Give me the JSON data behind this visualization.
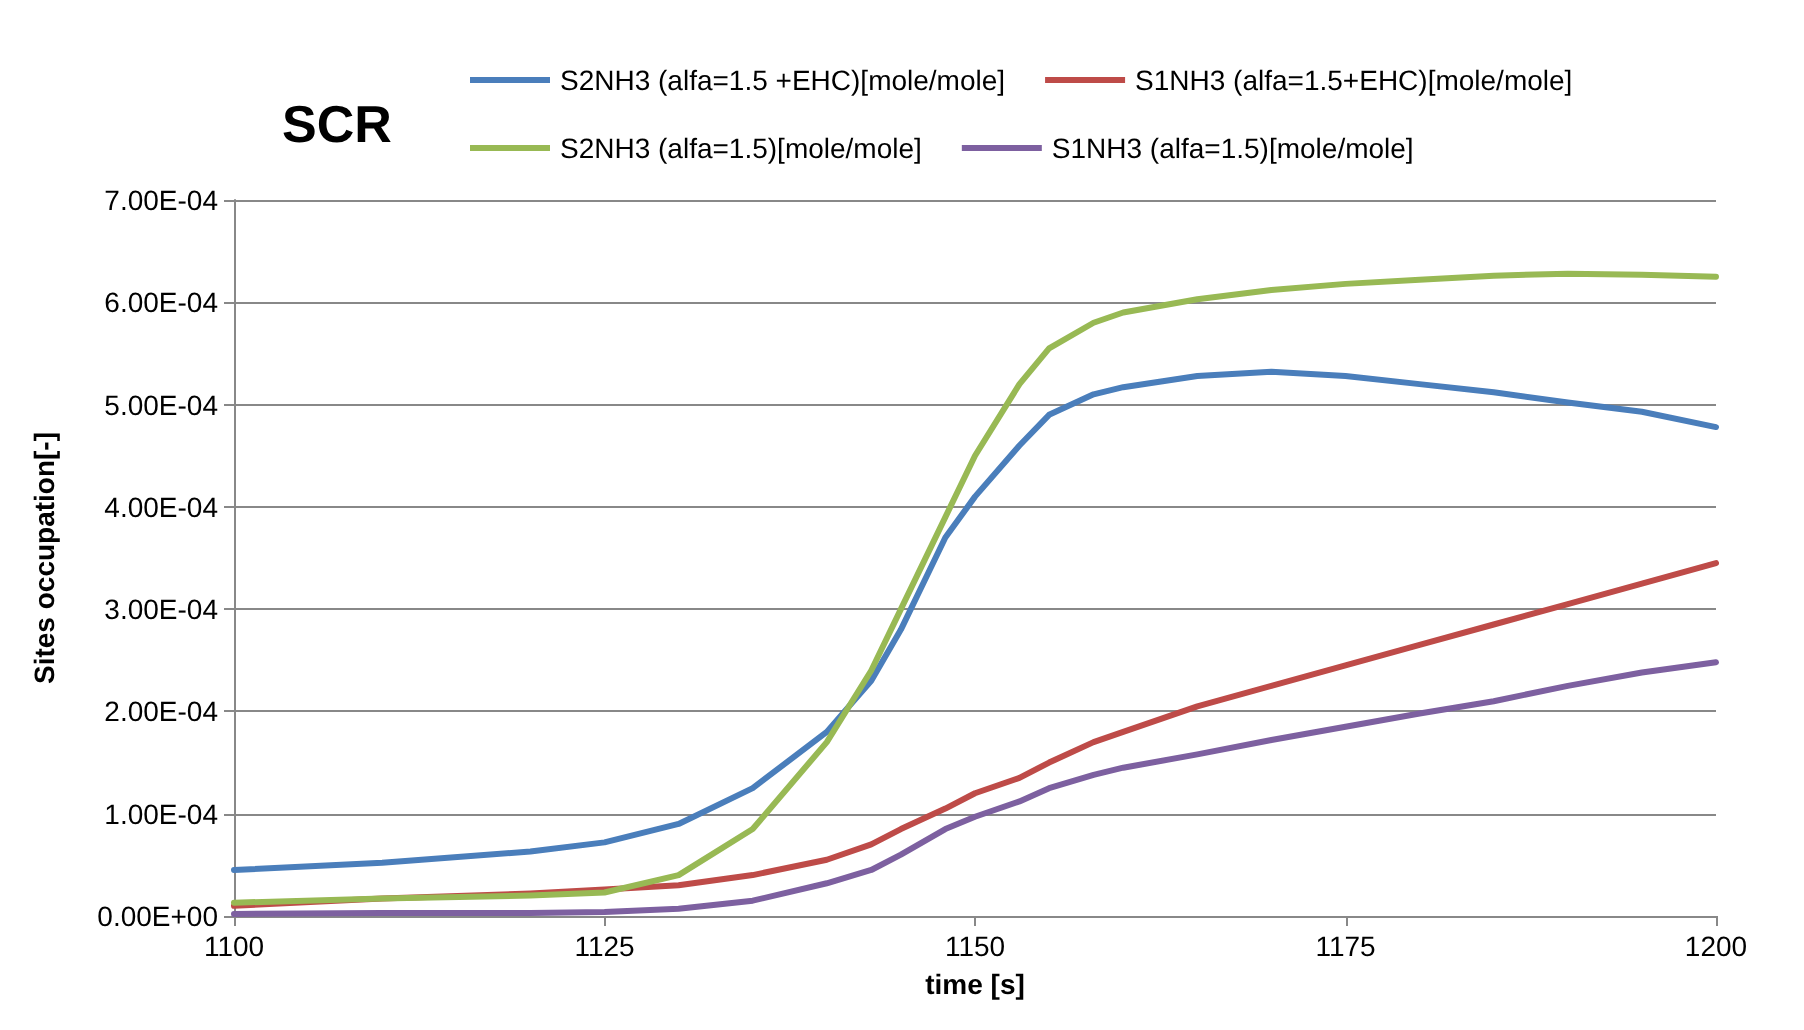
{
  "chart_data": {
    "type": "line",
    "title": "SCR",
    "xlabel": "time [s]",
    "ylabel": "Sites occupation[-]",
    "x": [
      1100,
      1110,
      1120,
      1125,
      1130,
      1135,
      1140,
      1143,
      1145,
      1148,
      1150,
      1153,
      1155,
      1158,
      1160,
      1165,
      1170,
      1175,
      1180,
      1185,
      1190,
      1195,
      1200
    ],
    "series": [
      {
        "name": "S2NH3 (alfa=1.5 +EHC)[mole/mole]",
        "color": "#4a7ebb",
        "values": [
          4.5e-05,
          5.2e-05,
          6.3e-05,
          7.2e-05,
          9e-05,
          0.000125,
          0.00018,
          0.00023,
          0.00028,
          0.00037,
          0.00041,
          0.00046,
          0.00049,
          0.00051,
          0.000517,
          0.000528,
          0.000532,
          0.000528,
          0.00052,
          0.000512,
          0.000502,
          0.000493,
          0.000478
        ]
      },
      {
        "name": "S1NH3 (alfa=1.5+EHC)[mole/mole]",
        "color": "#be4b48",
        "values": [
          1e-05,
          1.7e-05,
          2.2e-05,
          2.6e-05,
          3e-05,
          4e-05,
          5.5e-05,
          7e-05,
          8.5e-05,
          0.000105,
          0.00012,
          0.000135,
          0.00015,
          0.00017,
          0.00018,
          0.000205,
          0.000225,
          0.000245,
          0.000265,
          0.000285,
          0.000305,
          0.000325,
          0.000345
        ]
      },
      {
        "name": "S2NH3 (alfa=1.5)[mole/mole]",
        "color": "#98b954",
        "values": [
          1.3e-05,
          1.7e-05,
          2e-05,
          2.3e-05,
          4e-05,
          8.5e-05,
          0.00017,
          0.00024,
          0.0003,
          0.00039,
          0.00045,
          0.00052,
          0.000555,
          0.00058,
          0.00059,
          0.000603,
          0.000612,
          0.000618,
          0.000622,
          0.000626,
          0.000628,
          0.000627,
          0.000625
        ]
      },
      {
        "name": "S1NH3 (alfa=1.5)[mole/mole]",
        "color": "#7d60a0",
        "values": [
          2e-06,
          3e-06,
          3e-06,
          4e-06,
          7e-06,
          1.5e-05,
          3.2e-05,
          4.5e-05,
          6e-05,
          8.5e-05,
          9.7e-05,
          0.000112,
          0.000125,
          0.000138,
          0.000145,
          0.000158,
          0.000172,
          0.000185,
          0.000198,
          0.00021,
          0.000225,
          0.000238,
          0.000248
        ]
      }
    ],
    "xlim": [
      1100,
      1200
    ],
    "xticks": [
      1100,
      1125,
      1150,
      1175,
      1200
    ],
    "ylim": [
      0,
      0.0007
    ],
    "yticks": [
      {
        "value": 0,
        "label": "0.00E+00"
      },
      {
        "value": 0.0001,
        "label": "1.00E-04"
      },
      {
        "value": 0.0002,
        "label": "2.00E-04"
      },
      {
        "value": 0.0003,
        "label": "3.00E-04"
      },
      {
        "value": 0.0004,
        "label": "4.00E-04"
      },
      {
        "value": 0.0005,
        "label": "5.00E-04"
      },
      {
        "value": 0.0006,
        "label": "6.00E-04"
      },
      {
        "value": 0.0007,
        "label": "7.00E-04"
      }
    ],
    "grid": "y",
    "legend": "top",
    "marker": "none",
    "line_style": "solid"
  }
}
